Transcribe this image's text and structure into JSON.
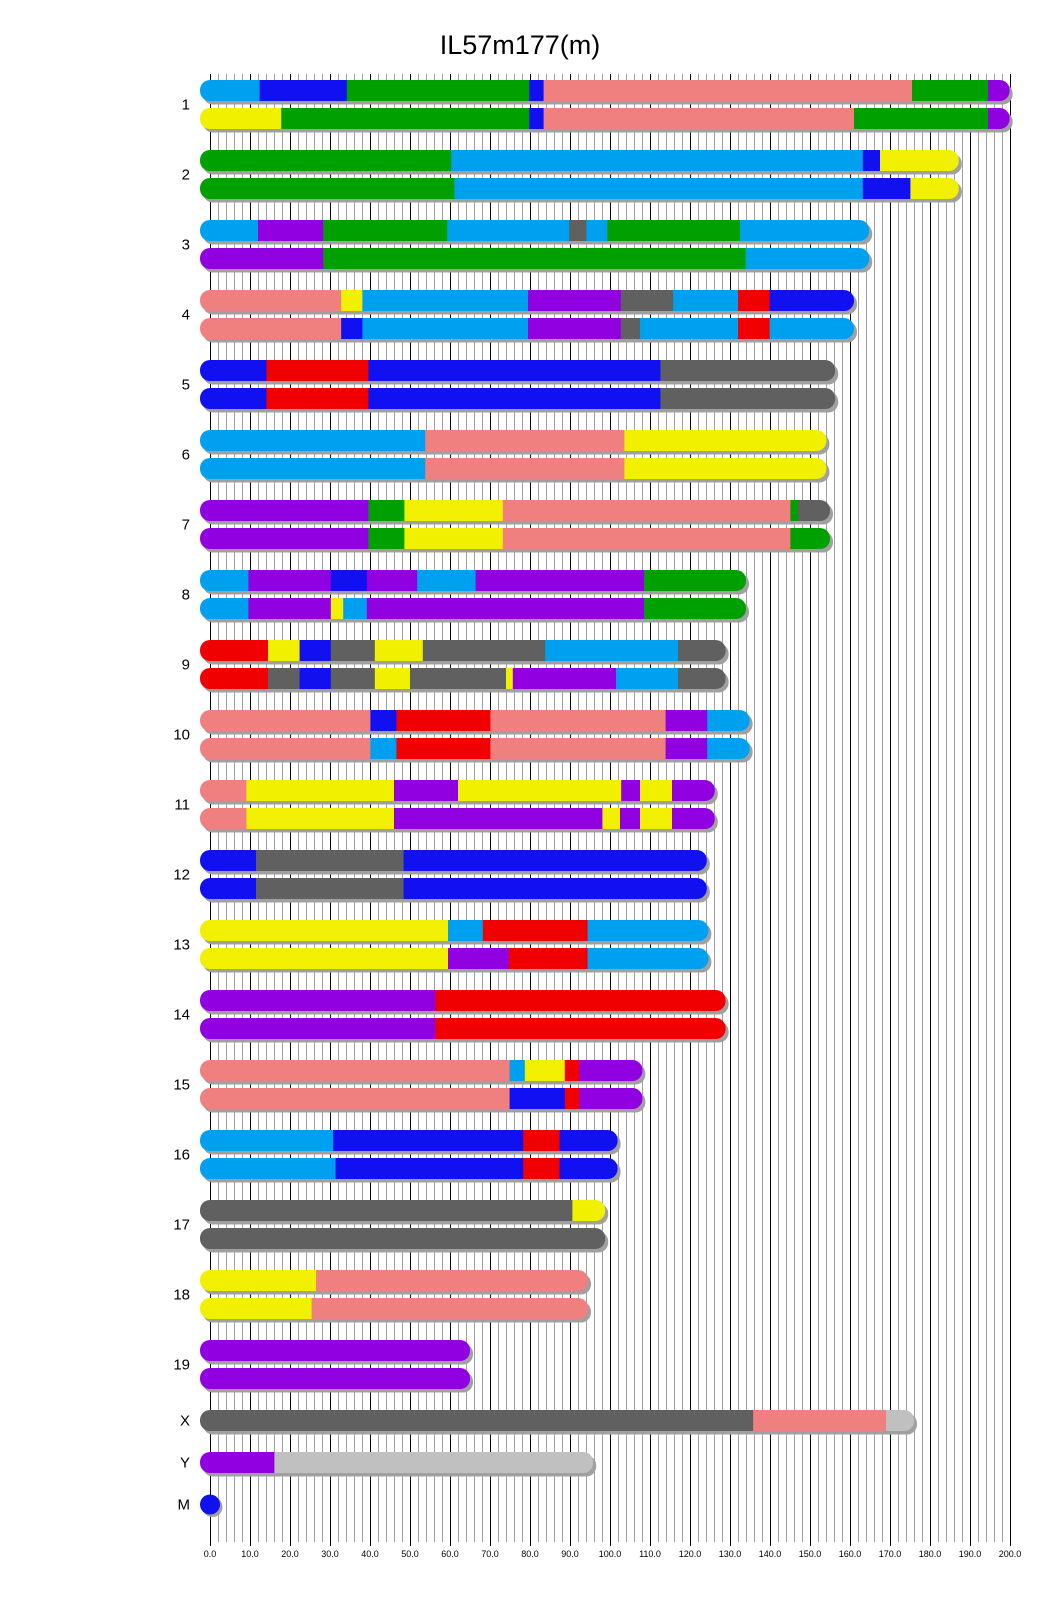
{
  "chart_data": {
    "type": "chromosome-painting",
    "title": "IL57m177(m)",
    "xlim": [
      0,
      200
    ],
    "minor_grid_step": 2,
    "major_grid_step": 10,
    "tick_labels": [
      "0.0",
      "10.0",
      "20.0",
      "30.0",
      "40.0",
      "50.0",
      "60.0",
      "70.0",
      "80.0",
      "90.0",
      "100.0",
      "110.0",
      "120.0",
      "130.0",
      "140.0",
      "150.0",
      "160.0",
      "170.0",
      "180.0",
      "190.0",
      "200.0"
    ],
    "palette": {
      "lb": "#00A0F0",
      "b": "#1010F0",
      "g": "#00A000",
      "s": "#F08080",
      "p": "#9000E0",
      "y": "#F0F000",
      "r": "#F00000",
      "dg": "#606060",
      "lg": "#C0C0C0"
    },
    "shadow_color": "#A0A0A0",
    "chromosomes": [
      {
        "name": "1",
        "haplotypes": [
          [
            [
              12.4,
              "lb"
            ],
            [
              34.2,
              "b"
            ],
            [
              79.8,
              "g"
            ],
            [
              83.4,
              "b"
            ],
            [
              175.5,
              "s"
            ],
            [
              194.5,
              "g"
            ],
            [
              199.9,
              "p"
            ]
          ],
          [
            [
              17.8,
              "y"
            ],
            [
              79.8,
              "g"
            ],
            [
              83.4,
              "b"
            ],
            [
              161,
              "s"
            ],
            [
              194.5,
              "g"
            ],
            [
              199.9,
              "p"
            ]
          ]
        ]
      },
      {
        "name": "2",
        "haplotypes": [
          [
            [
              60.3,
              "g"
            ],
            [
              163.2,
              "lb"
            ],
            [
              167.5,
              "b"
            ],
            [
              187.2,
              "y"
            ]
          ],
          [
            [
              61.1,
              "g"
            ],
            [
              163.2,
              "lb"
            ],
            [
              175.1,
              "b"
            ],
            [
              187.2,
              "y"
            ]
          ]
        ]
      },
      {
        "name": "3",
        "haplotypes": [
          [
            [
              12,
              "lb"
            ],
            [
              28.3,
              "p"
            ],
            [
              59.3,
              "g"
            ],
            [
              89.8,
              "lb"
            ],
            [
              94.1,
              "dg"
            ],
            [
              99.3,
              "lb"
            ],
            [
              132.5,
              "g"
            ],
            [
              164.8,
              "lb"
            ]
          ],
          [
            [
              28.3,
              "p"
            ],
            [
              133.9,
              "g"
            ],
            [
              164.8,
              "lb"
            ]
          ]
        ]
      },
      {
        "name": "4",
        "haplotypes": [
          [
            [
              32.8,
              "s"
            ],
            [
              38.1,
              "y"
            ],
            [
              79.5,
              "lb"
            ],
            [
              102.7,
              "p"
            ],
            [
              115.8,
              "dg"
            ],
            [
              132,
              "lb"
            ],
            [
              139.9,
              "r"
            ],
            [
              161,
              "b"
            ]
          ],
          [
            [
              32.8,
              "s"
            ],
            [
              38.1,
              "b"
            ],
            [
              79.5,
              "lb"
            ],
            [
              102.7,
              "p"
            ],
            [
              107.5,
              "dg"
            ],
            [
              132,
              "lb"
            ],
            [
              139.9,
              "r"
            ],
            [
              161,
              "lb"
            ]
          ]
        ]
      },
      {
        "name": "5",
        "haplotypes": [
          [
            [
              14.1,
              "b"
            ],
            [
              39.6,
              "r"
            ],
            [
              112.6,
              "b"
            ],
            [
              156.3,
              "dg"
            ]
          ],
          [
            [
              14.1,
              "b"
            ],
            [
              39.6,
              "r"
            ],
            [
              112.6,
              "b"
            ],
            [
              156.3,
              "dg"
            ]
          ]
        ]
      },
      {
        "name": "6",
        "haplotypes": [
          [
            [
              53.8,
              "lb"
            ],
            [
              103.6,
              "s"
            ],
            [
              154.1,
              "y"
            ]
          ],
          [
            [
              53.8,
              "lb"
            ],
            [
              103.6,
              "s"
            ],
            [
              154.1,
              "y"
            ]
          ]
        ]
      },
      {
        "name": "7",
        "haplotypes": [
          [
            [
              39.6,
              "p"
            ],
            [
              48.6,
              "g"
            ],
            [
              73.2,
              "y"
            ],
            [
              145.1,
              "s"
            ],
            [
              147,
              "g"
            ],
            [
              155,
              "dg"
            ]
          ],
          [
            [
              39.6,
              "p"
            ],
            [
              48.6,
              "g"
            ],
            [
              73.2,
              "y"
            ],
            [
              145.1,
              "s"
            ],
            [
              155,
              "g"
            ]
          ]
        ]
      },
      {
        "name": "8",
        "haplotypes": [
          [
            [
              9.6,
              "lb"
            ],
            [
              30.2,
              "p"
            ],
            [
              39.2,
              "b"
            ],
            [
              51.8,
              "p"
            ],
            [
              66.4,
              "lb"
            ],
            [
              108.5,
              "p"
            ],
            [
              134,
              "g"
            ]
          ],
          [
            [
              9.6,
              "lb"
            ],
            [
              30.2,
              "p"
            ],
            [
              33.3,
              "y"
            ],
            [
              39.2,
              "lb"
            ],
            [
              108.5,
              "p"
            ],
            [
              134,
              "g"
            ]
          ]
        ]
      },
      {
        "name": "9",
        "haplotypes": [
          [
            [
              14.5,
              "r"
            ],
            [
              22.4,
              "y"
            ],
            [
              30.2,
              "b"
            ],
            [
              41.2,
              "dg"
            ],
            [
              53.2,
              "y"
            ],
            [
              83.8,
              "dg"
            ],
            [
              117,
              "lb"
            ],
            [
              128.9,
              "dg"
            ]
          ],
          [
            [
              14.5,
              "r"
            ],
            [
              22.4,
              "dg"
            ],
            [
              30.2,
              "b"
            ],
            [
              41.2,
              "dg"
            ],
            [
              50,
              "y"
            ],
            [
              74,
              "dg"
            ],
            [
              75.7,
              "y"
            ],
            [
              101.5,
              "p"
            ],
            [
              117,
              "lb"
            ],
            [
              128.9,
              "dg"
            ]
          ]
        ]
      },
      {
        "name": "10",
        "haplotypes": [
          [
            [
              40.1,
              "s"
            ],
            [
              46.6,
              "b"
            ],
            [
              70.1,
              "r"
            ],
            [
              113.9,
              "s"
            ],
            [
              124.3,
              "p"
            ],
            [
              134.9,
              "lb"
            ]
          ],
          [
            [
              40.1,
              "s"
            ],
            [
              46.6,
              "lb"
            ],
            [
              70.1,
              "r"
            ],
            [
              113.9,
              "s"
            ],
            [
              124.3,
              "p"
            ],
            [
              134.9,
              "lb"
            ]
          ]
        ]
      },
      {
        "name": "11",
        "haplotypes": [
          [
            [
              9.1,
              "s"
            ],
            [
              46,
              "y"
            ],
            [
              62,
              "p"
            ],
            [
              102.8,
              "y"
            ],
            [
              107.5,
              "p"
            ],
            [
              115.5,
              "y"
            ],
            [
              126.2,
              "p"
            ]
          ],
          [
            [
              9.1,
              "s"
            ],
            [
              46,
              "y"
            ],
            [
              98.1,
              "p"
            ],
            [
              102.5,
              "y"
            ],
            [
              107.5,
              "p"
            ],
            [
              115.5,
              "y"
            ],
            [
              126.2,
              "p"
            ]
          ]
        ]
      },
      {
        "name": "12",
        "haplotypes": [
          [
            [
              11.5,
              "b"
            ],
            [
              48.4,
              "dg"
            ],
            [
              124.2,
              "b"
            ]
          ],
          [
            [
              11.5,
              "b"
            ],
            [
              48.4,
              "dg"
            ],
            [
              124.2,
              "b"
            ]
          ]
        ]
      },
      {
        "name": "13",
        "haplotypes": [
          [
            [
              59.5,
              "y"
            ],
            [
              68.2,
              "lb"
            ],
            [
              94.4,
              "r"
            ],
            [
              124.6,
              "lb"
            ]
          ],
          [
            [
              59.5,
              "y"
            ],
            [
              74.7,
              "p"
            ],
            [
              94.4,
              "r"
            ],
            [
              124.6,
              "lb"
            ]
          ]
        ]
      },
      {
        "name": "14",
        "haplotypes": [
          [
            [
              56.3,
              "p"
            ],
            [
              128.9,
              "r"
            ]
          ],
          [
            [
              56.3,
              "p"
            ],
            [
              128.9,
              "r"
            ]
          ]
        ]
      },
      {
        "name": "15",
        "haplotypes": [
          [
            [
              74.9,
              "s"
            ],
            [
              78.7,
              "lb"
            ],
            [
              88.7,
              "y"
            ],
            [
              92.3,
              "r"
            ],
            [
              108.1,
              "p"
            ]
          ],
          [
            [
              74.9,
              "s"
            ],
            [
              88.7,
              "b"
            ],
            [
              92.3,
              "r"
            ],
            [
              108.1,
              "p"
            ]
          ]
        ]
      },
      {
        "name": "16",
        "haplotypes": [
          [
            [
              30.8,
              "lb"
            ],
            [
              78.3,
              "b"
            ],
            [
              87.4,
              "r"
            ],
            [
              101.9,
              "b"
            ]
          ],
          [
            [
              31.4,
              "lb"
            ],
            [
              78.3,
              "b"
            ],
            [
              87.4,
              "r"
            ],
            [
              101.9,
              "b"
            ]
          ]
        ]
      },
      {
        "name": "17",
        "haplotypes": [
          [
            [
              90.6,
              "dg"
            ],
            [
              98.8,
              "y"
            ]
          ],
          [
            [
              98.8,
              "dg"
            ]
          ]
        ]
      },
      {
        "name": "18",
        "haplotypes": [
          [
            [
              26.5,
              "y"
            ],
            [
              94.5,
              "s"
            ]
          ],
          [
            [
              25.4,
              "y"
            ],
            [
              94.5,
              "s"
            ]
          ]
        ]
      },
      {
        "name": "19",
        "haplotypes": [
          [
            [
              65,
              "p"
            ]
          ],
          [
            [
              65,
              "p"
            ]
          ]
        ]
      },
      {
        "name": "X",
        "haplotypes": [
          [
            [
              135.8,
              "dg"
            ],
            [
              169,
              "s"
            ],
            [
              176,
              "lg"
            ]
          ]
        ]
      },
      {
        "name": "Y",
        "haplotypes": [
          [
            [
              16.1,
              "p"
            ],
            [
              95.8,
              "lg"
            ]
          ]
        ]
      },
      {
        "name": "M",
        "haplotypes": [
          [
            [
              0.1,
              "b"
            ]
          ]
        ]
      }
    ]
  }
}
